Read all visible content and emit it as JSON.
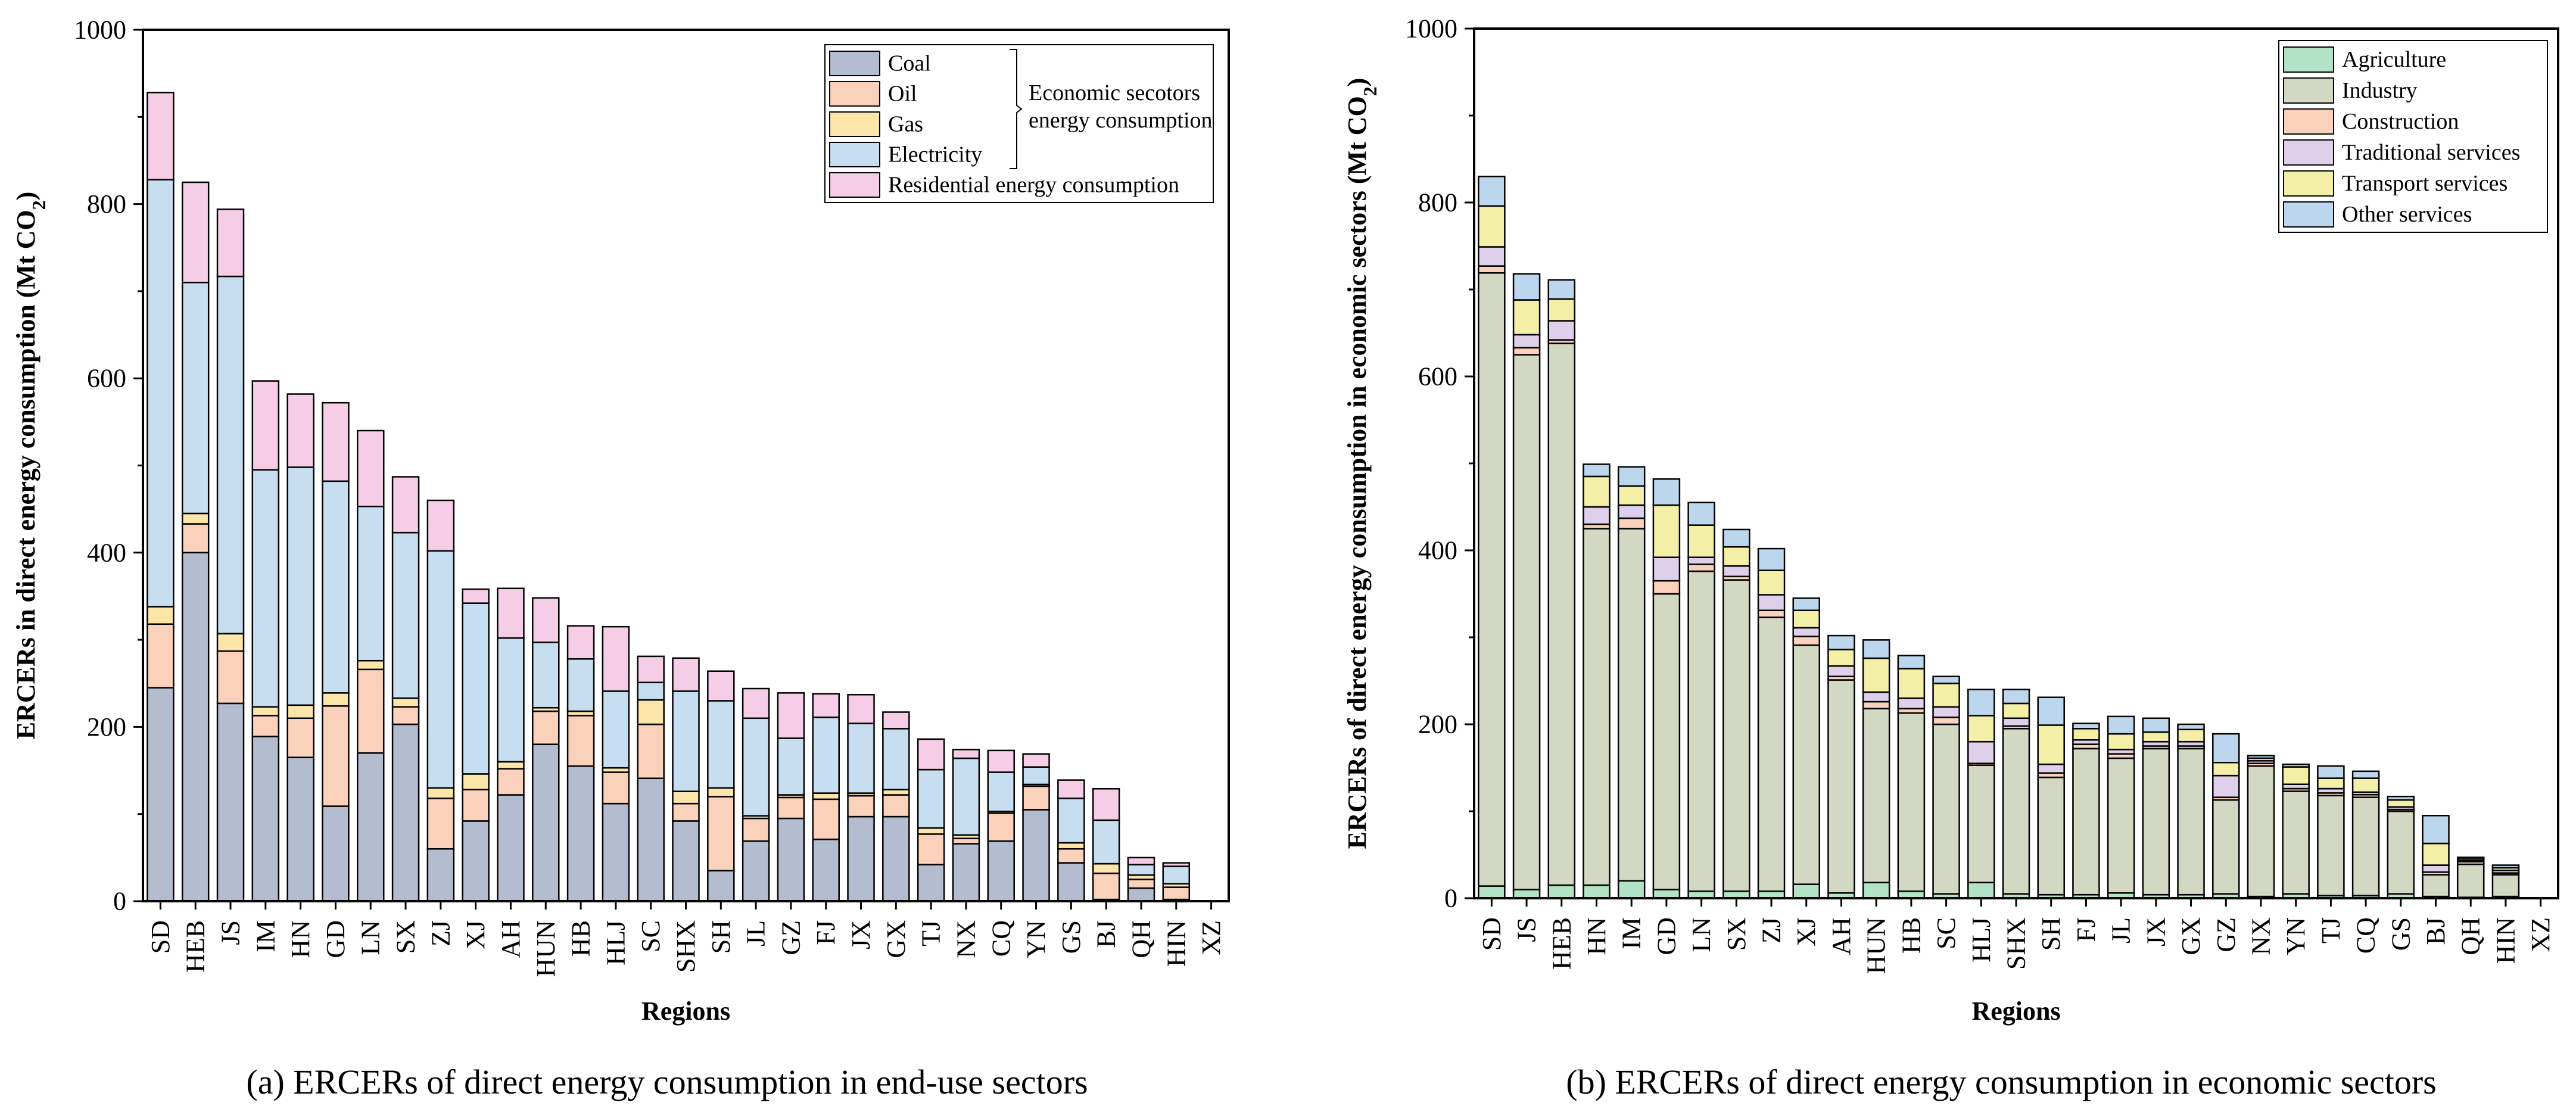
{
  "chart_data": [
    {
      "type": "bar",
      "stacked": true,
      "caption": "(a) ERCERs of direct energy consumption in end-use sectors",
      "xlabel": "Regions",
      "ylabel": "ERCERs in direct energy consumption (Mt CO",
      "ylabel_sub": "2",
      "ylabel_close": ")",
      "ylim": [
        0,
        1000
      ],
      "yticks": [
        "0",
        "200",
        "400",
        "600",
        "800",
        "1000"
      ],
      "legend_brace_label": [
        "Economic secotors",
        "energy consumption"
      ],
      "categories": [
        "SD",
        "HEB",
        "JS",
        "IM",
        "HN",
        "GD",
        "LN",
        "SX",
        "ZJ",
        "XJ",
        "AH",
        "HUN",
        "HB",
        "HLJ",
        "SC",
        "SHX",
        "SH",
        "JL",
        "GZ",
        "FJ",
        "JX",
        "GX",
        "TJ",
        "NX",
        "CQ",
        "YN",
        "GS",
        "BJ",
        "QH",
        "HIN",
        "XZ"
      ],
      "series": [
        {
          "name": "Coal",
          "color": "#b4bdd0",
          "values": [
            245,
            400,
            227,
            189,
            165,
            109,
            170,
            203,
            60,
            92,
            122,
            180,
            155,
            112,
            141,
            92,
            35,
            69,
            95,
            71,
            97,
            97,
            42,
            66,
            69,
            105,
            44,
            2,
            15,
            2,
            0
          ]
        },
        {
          "name": "Oil",
          "color": "#fad1bb",
          "values": [
            73,
            33,
            60,
            24,
            45,
            115,
            96,
            20,
            58,
            36,
            30,
            38,
            58,
            36,
            62,
            20,
            85,
            26,
            24,
            46,
            24,
            25,
            35,
            6,
            32,
            27,
            16,
            30,
            10,
            14,
            0
          ]
        },
        {
          "name": "Gas",
          "color": "#fbe5a8",
          "values": [
            20,
            12,
            20,
            10,
            15,
            15,
            10,
            10,
            12,
            18,
            8,
            4,
            5,
            5,
            28,
            14,
            10,
            3,
            3,
            7,
            3,
            6,
            7,
            4,
            2,
            2,
            7,
            11,
            5,
            4,
            0
          ]
        },
        {
          "name": "Electricity",
          "color": "#c7def0",
          "values": [
            490,
            265,
            410,
            272,
            273,
            243,
            177,
            190,
            272,
            196,
            142,
            75,
            60,
            88,
            20,
            115,
            100,
            112,
            65,
            87,
            80,
            70,
            67,
            88,
            45,
            20,
            51,
            50,
            12,
            20,
            0
          ]
        },
        {
          "name": "Residential energy consumption",
          "color": "#f6cde6",
          "values": [
            100,
            115,
            77,
            102,
            84,
            90,
            87,
            64,
            58,
            16,
            57,
            51,
            38,
            74,
            30,
            38,
            34,
            34,
            52,
            27,
            33,
            19,
            35,
            10,
            25,
            15,
            21,
            36,
            8,
            4,
            0
          ]
        }
      ]
    },
    {
      "type": "bar",
      "stacked": true,
      "caption": "(b) ERCERs of direct energy consumption in economic sectors",
      "xlabel": "Regions",
      "ylabel": "ERCERs of direct energy consumption in economic sectors (Mt CO",
      "ylabel_sub": "2",
      "ylabel_close": ")",
      "ylim": [
        0,
        1000
      ],
      "yticks": [
        "0",
        "200",
        "400",
        "600",
        "800",
        "1000"
      ],
      "categories": [
        "SD",
        "JS",
        "HEB",
        "HN",
        "IM",
        "GD",
        "LN",
        "SX",
        "ZJ",
        "XJ",
        "AH",
        "HUN",
        "HB",
        "SC",
        "HLJ",
        "SHX",
        "SH",
        "FJ",
        "JL",
        "JX",
        "GX",
        "GZ",
        "NX",
        "YN",
        "TJ",
        "CQ",
        "GS",
        "BJ",
        "QH",
        "HIN",
        "XZ"
      ],
      "series": [
        {
          "name": "Agriculture",
          "color": "#b2e3c6",
          "values": [
            14,
            10,
            15,
            15,
            20,
            10,
            8,
            8,
            8,
            16,
            6,
            18,
            8,
            5,
            18,
            5,
            4,
            4,
            6,
            4,
            4,
            5,
            2,
            5,
            3,
            3,
            5,
            2,
            1,
            2,
            0
          ]
        },
        {
          "name": "Industry",
          "color": "#d3d8c2",
          "values": [
            705,
            615,
            623,
            410,
            405,
            340,
            368,
            358,
            315,
            275,
            245,
            200,
            205,
            195,
            135,
            190,
            135,
            168,
            155,
            168,
            168,
            108,
            150,
            118,
            115,
            113,
            95,
            25,
            38,
            25,
            0
          ]
        },
        {
          "name": "Construction",
          "color": "#fad1bb",
          "values": [
            8,
            8,
            4,
            5,
            12,
            15,
            8,
            4,
            8,
            10,
            4,
            8,
            5,
            8,
            2,
            3,
            5,
            5,
            5,
            3,
            3,
            3,
            3,
            3,
            3,
            3,
            2,
            3,
            3,
            2,
            0
          ]
        },
        {
          "name": "Traditional services",
          "color": "#decfeb",
          "values": [
            22,
            15,
            22,
            20,
            15,
            27,
            8,
            12,
            18,
            10,
            12,
            11,
            12,
            12,
            25,
            9,
            10,
            5,
            5,
            5,
            5,
            25,
            3,
            5,
            5,
            3,
            3,
            8,
            1,
            3,
            0
          ]
        },
        {
          "name": "Transport services",
          "color": "#f3efa7",
          "values": [
            47,
            40,
            25,
            35,
            22,
            60,
            37,
            22,
            28,
            20,
            19,
            39,
            34,
            27,
            30,
            17,
            45,
            13,
            18,
            11,
            14,
            15,
            3,
            20,
            12,
            16,
            8,
            25,
            2,
            3,
            0
          ]
        },
        {
          "name": "Other services",
          "color": "#bcd6ee",
          "values": [
            34,
            30,
            22,
            14,
            22,
            30,
            26,
            20,
            25,
            14,
            16,
            21,
            15,
            8,
            30,
            16,
            32,
            6,
            20,
            16,
            6,
            33,
            3,
            3,
            14,
            8,
            4,
            32,
            2,
            3,
            0
          ]
        }
      ]
    }
  ]
}
